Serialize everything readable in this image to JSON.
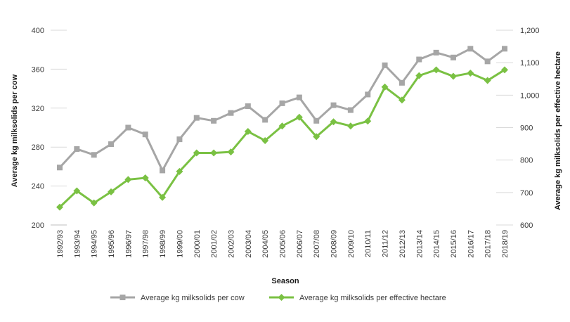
{
  "chart_data": {
    "type": "line",
    "xlabel": "Season",
    "ylabel_left": "Average kg milksolids per cow",
    "ylabel_right": "Average kg milksolids per effective hectare",
    "ylim_left": [
      200,
      400
    ],
    "ylim_right": [
      600,
      1200
    ],
    "yticks_left": [
      "400",
      "360",
      "320",
      "280",
      "240",
      "200"
    ],
    "yticks_right": [
      "1,200",
      "1,100",
      "1,000",
      "900",
      "800",
      "700",
      "600"
    ],
    "grid": "horizontal",
    "legend_position": "bottom",
    "categories": [
      "1992/93",
      "1993/94",
      "1994/95",
      "1995/96",
      "1996/97",
      "1997/98",
      "1998/99",
      "1999/00",
      "2000/01",
      "2001/02",
      "2002/03",
      "2003/04",
      "2004/05",
      "2005/06",
      "2006/07",
      "2007/08",
      "2008/09",
      "2009/10",
      "2010/11",
      "2011/12",
      "2012/13",
      "2013/14",
      "2014/15",
      "2015/16",
      "2016/17",
      "2017/18",
      "2018/19"
    ],
    "series": [
      {
        "name": "Average kg milksolids per cow",
        "axis": "left",
        "color": "#a6a6a6",
        "marker": "square",
        "values": [
          259,
          278,
          272,
          283,
          300,
          293,
          256,
          288,
          310,
          307,
          315,
          322,
          308,
          325,
          331,
          307,
          323,
          318,
          334,
          364,
          346,
          370,
          377,
          372,
          381,
          368,
          381
        ]
      },
      {
        "name": "Average kg milksolids per effective hectare",
        "axis": "right",
        "color": "#7ac143",
        "marker": "diamond",
        "values": [
          655,
          705,
          668,
          702,
          740,
          745,
          685,
          765,
          822,
          822,
          825,
          888,
          860,
          905,
          932,
          872,
          918,
          905,
          920,
          1025,
          985,
          1060,
          1078,
          1058,
          1068,
          1045,
          1078
        ]
      }
    ]
  }
}
